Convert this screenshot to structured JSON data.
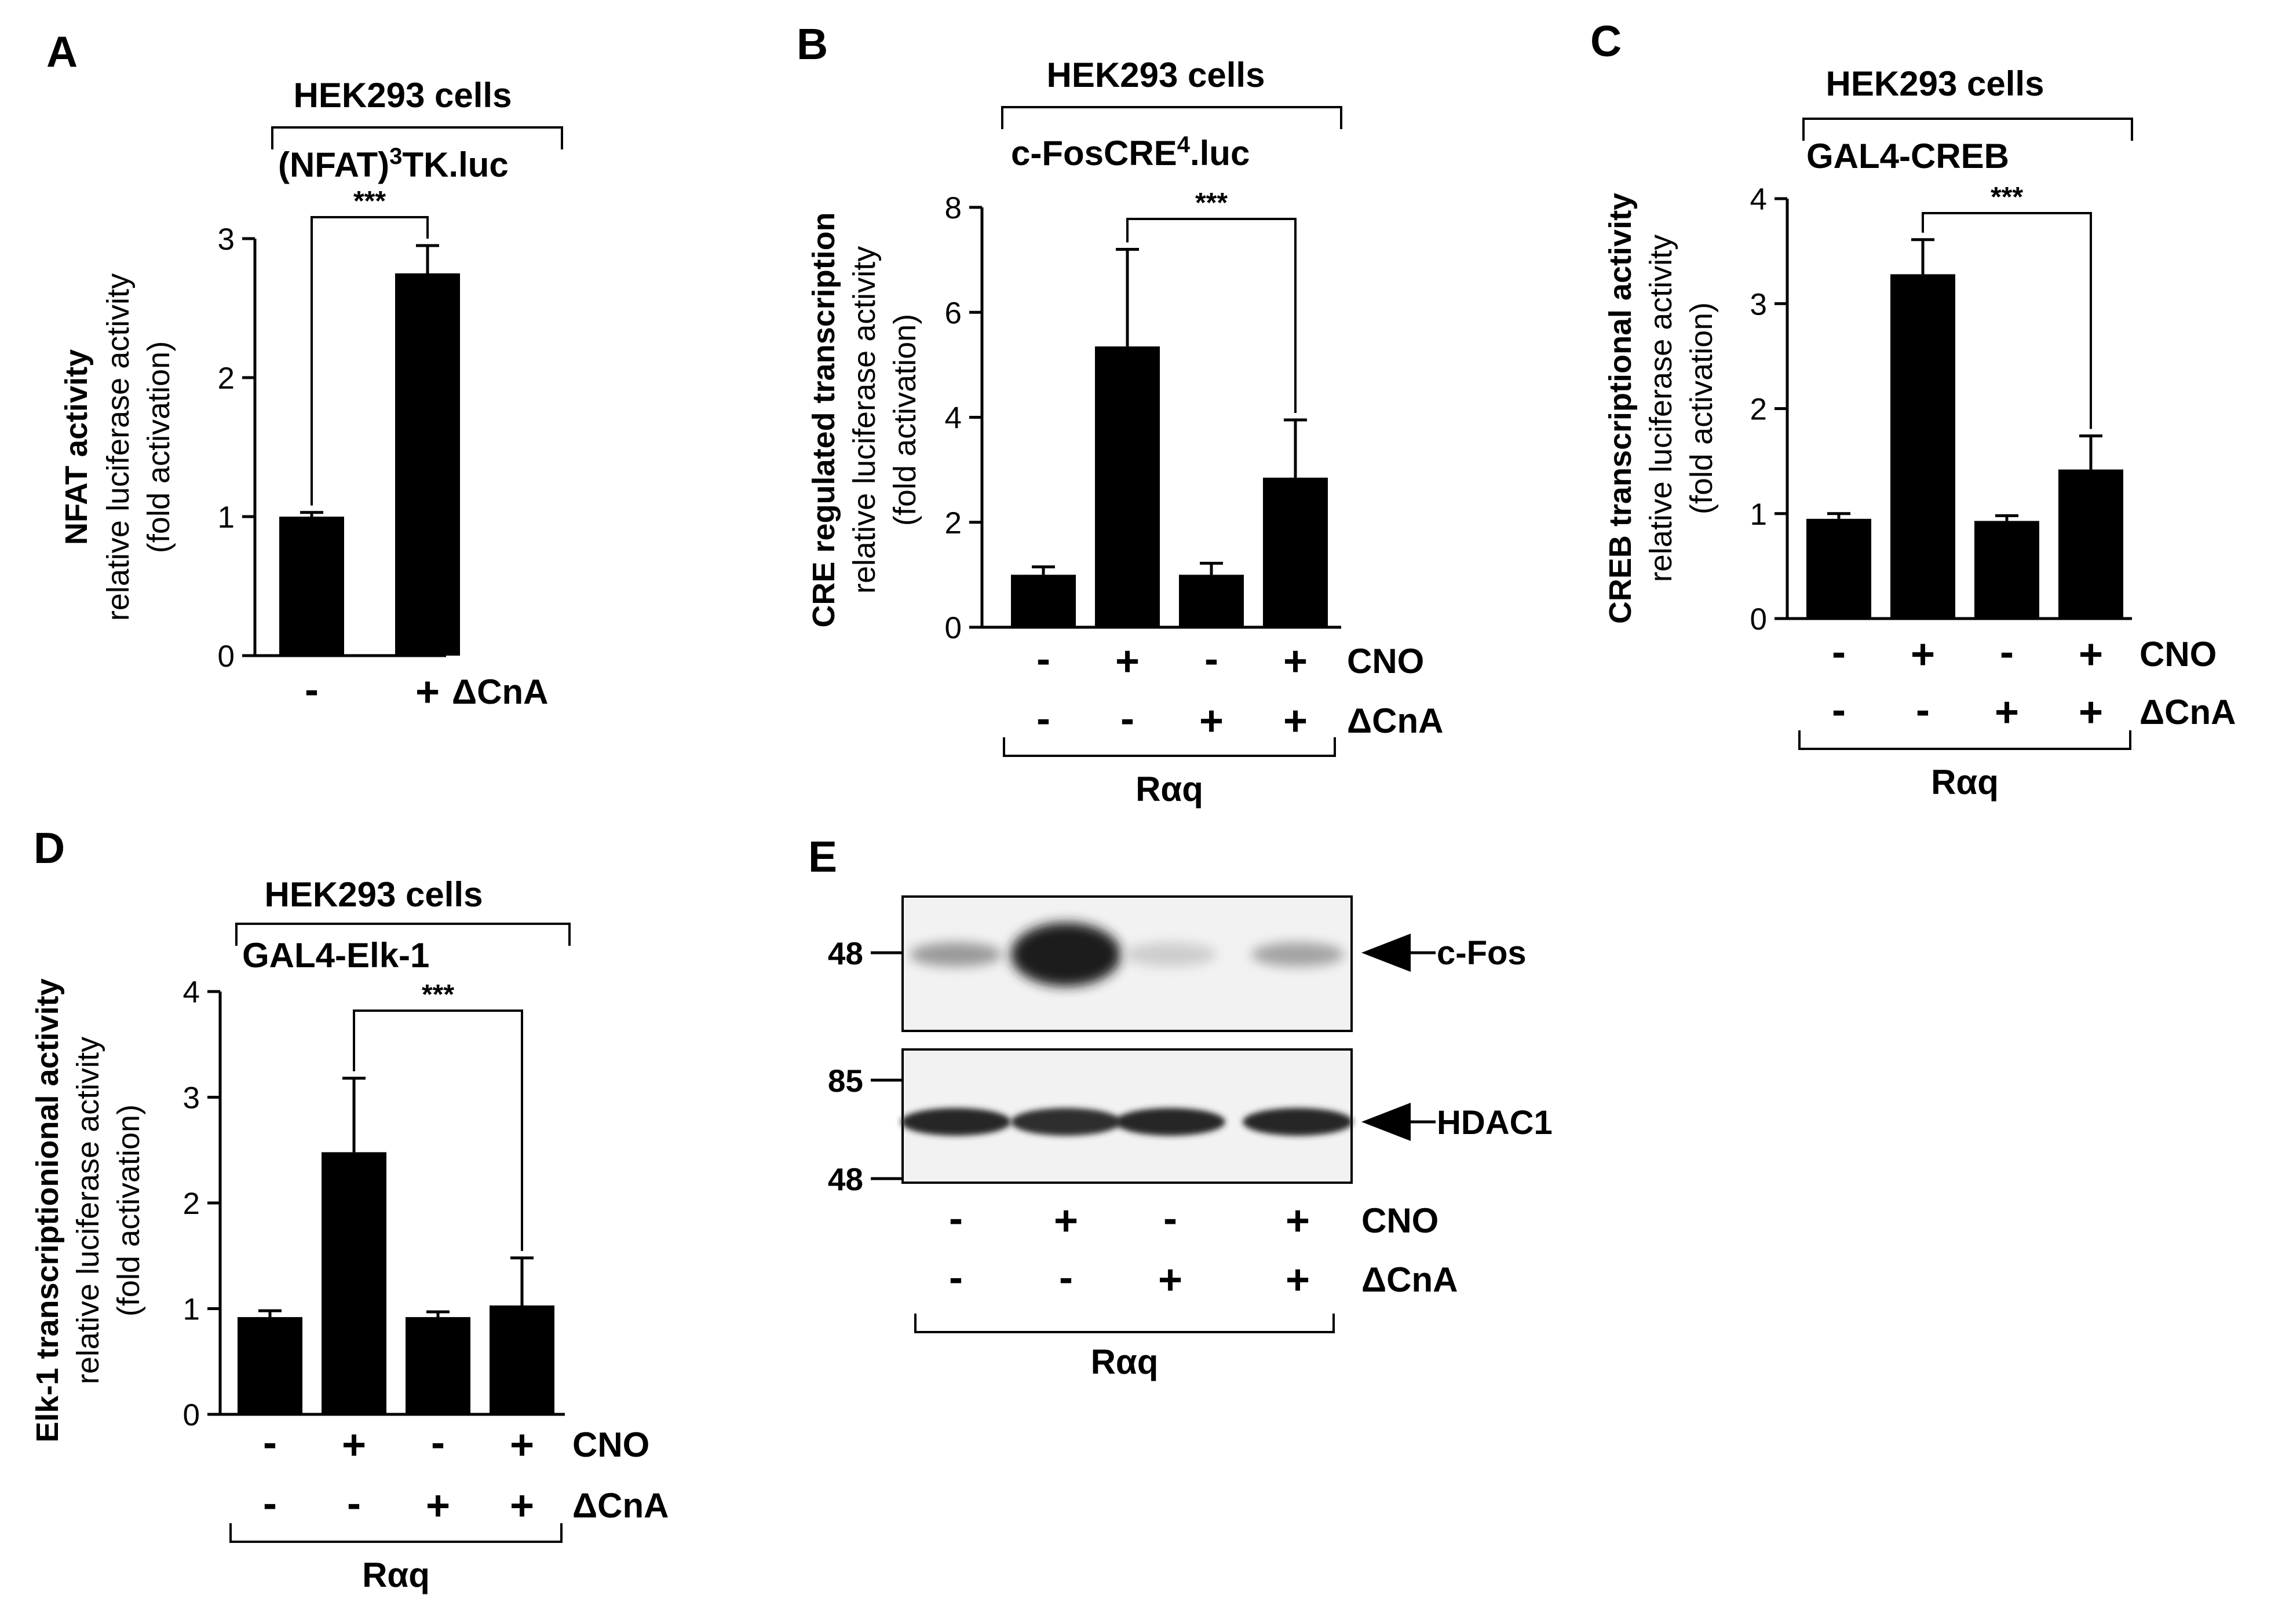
{
  "chart_data": [
    {
      "id": "A",
      "type": "bar",
      "panel_label": "A",
      "cells": "HEK293 cells",
      "reporter": "(NFAT)",
      "reporter_sup": "3",
      "reporter_rest": "TK.luc",
      "ylabel_bold": "NFAT activity",
      "ylabel_sub1": "relative luciferase activity",
      "ylabel_sub2": "(fold activation)",
      "ylim": [
        0,
        3
      ],
      "yticks": [
        0,
        1,
        2,
        3
      ],
      "values": [
        1.0,
        2.75
      ],
      "errors": [
        0.03,
        0.2
      ],
      "rows": [
        {
          "label": "ΔCnA",
          "signs": [
            "-",
            "+"
          ]
        }
      ],
      "significance": {
        "label": "***",
        "from": 0,
        "to": 1
      },
      "bracket_label": ""
    },
    {
      "id": "B",
      "type": "bar",
      "panel_label": "B",
      "cells": "HEK293 cells",
      "reporter": "c-FosCRE",
      "reporter_sup": "4",
      "reporter_rest": ".luc",
      "ylabel_bold": "CRE regulated transcription",
      "ylabel_sub1": "relative luciferase activity",
      "ylabel_sub2": "(fold activation)",
      "ylim": [
        0,
        8
      ],
      "yticks": [
        0,
        2,
        4,
        6,
        8
      ],
      "values": [
        1.0,
        5.35,
        1.0,
        2.85
      ],
      "errors": [
        0.15,
        1.85,
        0.22,
        1.1
      ],
      "rows": [
        {
          "label": "CNO",
          "signs": [
            "-",
            "+",
            "-",
            "+"
          ]
        },
        {
          "label": "ΔCnA",
          "signs": [
            "-",
            "-",
            "+",
            "+"
          ]
        }
      ],
      "significance": {
        "label": "***",
        "from": 1,
        "to": 3
      },
      "bracket_label": "Rαq"
    },
    {
      "id": "C",
      "type": "bar",
      "panel_label": "C",
      "cells": "HEK293 cells",
      "reporter": "GAL4-CREB",
      "reporter_sup": "",
      "reporter_rest": "",
      "ylabel_bold": "CREB transcriptional activity",
      "ylabel_sub1": "relative luciferase activity",
      "ylabel_sub2": "(fold activation)",
      "ylim": [
        0,
        4
      ],
      "yticks": [
        0,
        1,
        2,
        3,
        4
      ],
      "values": [
        0.95,
        3.28,
        0.93,
        1.42
      ],
      "errors": [
        0.05,
        0.33,
        0.05,
        0.32
      ],
      "rows": [
        {
          "label": "CNO",
          "signs": [
            "-",
            "+",
            "-",
            "+"
          ]
        },
        {
          "label": "ΔCnA",
          "signs": [
            "-",
            "-",
            "+",
            "+"
          ]
        }
      ],
      "significance": {
        "label": "***",
        "from": 1,
        "to": 3
      },
      "bracket_label": "Rαq"
    },
    {
      "id": "D",
      "type": "bar",
      "panel_label": "D",
      "cells": "HEK293 cells",
      "reporter": "GAL4-Elk-1",
      "reporter_sup": "",
      "reporter_rest": "",
      "ylabel_bold": "Elk-1 transcriptionional activity",
      "ylabel_sub1": "relative luciferase activity",
      "ylabel_sub2": "(fold activation)",
      "ylim": [
        0,
        4
      ],
      "yticks": [
        0,
        1,
        2,
        3,
        4
      ],
      "values": [
        0.92,
        2.48,
        0.92,
        1.03
      ],
      "errors": [
        0.06,
        0.7,
        0.05,
        0.45
      ],
      "rows": [
        {
          "label": "CNO",
          "signs": [
            "-",
            "+",
            "-",
            "+"
          ]
        },
        {
          "label": "ΔCnA",
          "signs": [
            "-",
            "-",
            "+",
            "+"
          ]
        }
      ],
      "significance": {
        "label": "***",
        "from": 1,
        "to": 3
      },
      "bracket_label": "Rαq"
    }
  ],
  "blot": {
    "panel_label": "E",
    "top_marker": "48",
    "bottom_markers": [
      "85",
      "48"
    ],
    "top_protein": "c-Fos",
    "bottom_protein": "HDAC1",
    "rows": [
      {
        "label": "CNO",
        "signs": [
          "-",
          "+",
          "-",
          "+"
        ]
      },
      {
        "label": "ΔCnA",
        "signs": [
          "-",
          "-",
          "+",
          "+"
        ]
      }
    ],
    "bracket_label": "Rαq",
    "band_intensity_top": [
      0.35,
      1.0,
      0.08,
      0.3
    ],
    "band_intensity_bottom": [
      0.9,
      0.85,
      0.9,
      0.9
    ]
  }
}
